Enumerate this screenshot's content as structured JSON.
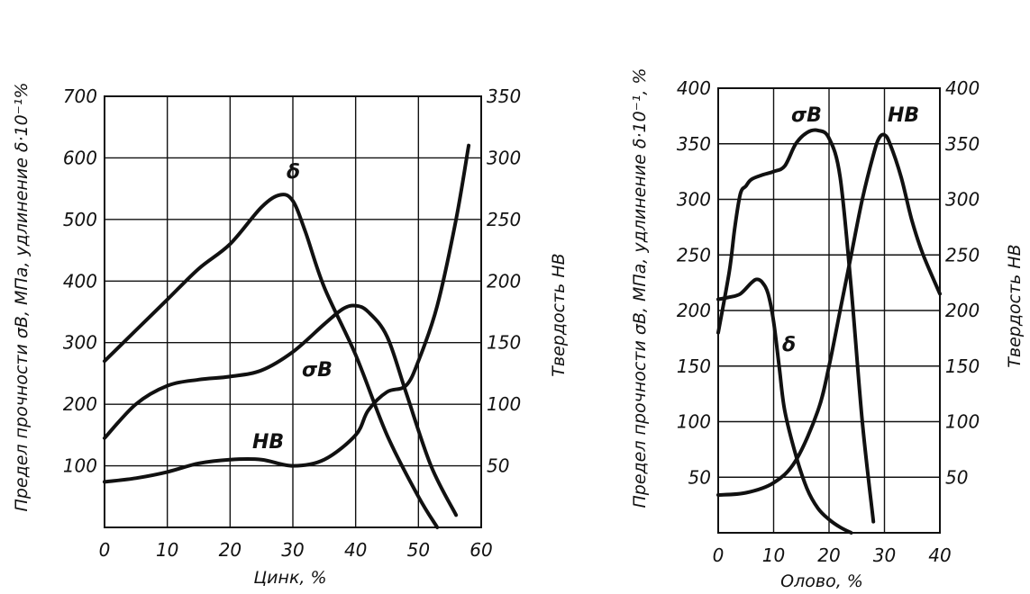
{
  "chart_data": [
    {
      "type": "line",
      "xlabel": "Цинк, %",
      "ylabel_left": "Предел прочности σB, МПа, удлинение δ·10⁻¹%",
      "ylabel_right": "Твердость НВ",
      "xlim": [
        0,
        60
      ],
      "ylim_left": [
        0,
        700
      ],
      "ylim_right": [
        0,
        350
      ],
      "x_ticks": [
        "0",
        "10",
        "20",
        "30",
        "40",
        "50",
        "60"
      ],
      "y_ticks_left": [
        "100",
        "200",
        "300",
        "400",
        "500",
        "600",
        "700"
      ],
      "y_ticks_right": [
        "50",
        "100",
        "150",
        "200",
        "250",
        "300",
        "350"
      ],
      "grid": true,
      "series": [
        {
          "name": "δ",
          "axis": "left",
          "x": [
            0,
            5,
            10,
            15,
            20,
            25,
            28,
            30,
            32,
            35,
            40,
            45,
            50,
            53
          ],
          "y": [
            270,
            320,
            370,
            420,
            460,
            520,
            540,
            530,
            480,
            390,
            280,
            150,
            50,
            0
          ]
        },
        {
          "name": "σB",
          "axis": "left",
          "x": [
            0,
            5,
            10,
            15,
            20,
            25,
            30,
            35,
            38,
            40,
            42,
            45,
            48,
            52,
            56
          ],
          "y": [
            145,
            200,
            230,
            240,
            245,
            255,
            285,
            330,
            355,
            360,
            350,
            310,
            220,
            100,
            20
          ]
        },
        {
          "name": "НВ",
          "axis": "right",
          "x": [
            0,
            5,
            10,
            15,
            20,
            25,
            30,
            35,
            40,
            42,
            45,
            48,
            50,
            53,
            56,
            58
          ],
          "y": [
            37,
            40,
            45,
            52,
            55,
            55,
            50,
            55,
            75,
            95,
            110,
            115,
            135,
            180,
            250,
            310
          ]
        }
      ]
    },
    {
      "type": "line",
      "xlabel": "Олово, %",
      "ylabel_left": "Предел прочности σB, МПа, удлинение δ·10⁻¹, %",
      "ylabel_right": "Твердость НВ",
      "xlim": [
        0,
        40
      ],
      "ylim_left": [
        0,
        400
      ],
      "ylim_right": [
        0,
        400
      ],
      "x_ticks": [
        "0",
        "10",
        "20",
        "30",
        "40"
      ],
      "y_ticks_left": [
        "50",
        "100",
        "150",
        "200",
        "250",
        "300",
        "350",
        "400"
      ],
      "y_ticks_right": [
        "50",
        "100",
        "150",
        "200",
        "250",
        "300",
        "350",
        "400"
      ],
      "grid": true,
      "series": [
        {
          "name": "σB",
          "axis": "left",
          "x": [
            0,
            2,
            3,
            4,
            5,
            6,
            8,
            10,
            12,
            14,
            16,
            18,
            20,
            22,
            24,
            26,
            28
          ],
          "y": [
            180,
            235,
            275,
            305,
            312,
            318,
            322,
            325,
            330,
            350,
            360,
            362,
            355,
            320,
            220,
            100,
            10
          ]
        },
        {
          "name": "НВ",
          "axis": "right",
          "x": [
            0,
            5,
            10,
            14,
            18,
            20,
            22,
            24,
            26,
            28,
            29,
            30,
            31,
            33,
            35,
            37,
            40
          ],
          "y": [
            34,
            36,
            45,
            65,
            110,
            150,
            200,
            250,
            300,
            340,
            355,
            358,
            350,
            320,
            280,
            250,
            215
          ]
        },
        {
          "name": "δ",
          "axis": "left",
          "x": [
            0,
            2,
            4,
            6,
            7,
            8,
            9,
            10,
            11,
            12,
            14,
            16,
            18,
            20,
            22,
            24
          ],
          "y": [
            210,
            212,
            215,
            225,
            228,
            225,
            215,
            190,
            150,
            110,
            70,
            40,
            22,
            12,
            5,
            0
          ]
        }
      ]
    }
  ]
}
